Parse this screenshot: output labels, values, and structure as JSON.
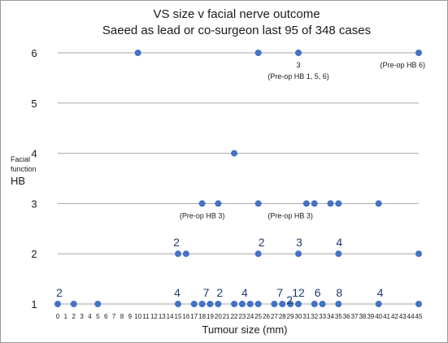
{
  "chart_data": {
    "type": "scatter",
    "title": "VS size v facial nerve outcome",
    "subtitle": "Saeed as lead or co-surgeon last 95 of 348 cases",
    "xlabel": "Tumour size (mm)",
    "ylabel_lines": [
      "Facial",
      "function",
      "HB"
    ],
    "xlim": [
      0,
      45
    ],
    "ylim": [
      1,
      6
    ],
    "xticks": [
      0,
      1,
      2,
      3,
      4,
      5,
      6,
      7,
      8,
      9,
      10,
      11,
      12,
      13,
      14,
      15,
      16,
      17,
      18,
      19,
      20,
      21,
      22,
      23,
      24,
      25,
      26,
      27,
      28,
      29,
      30,
      31,
      32,
      33,
      34,
      35,
      36,
      37,
      38,
      39,
      40,
      41,
      42,
      43,
      44,
      45
    ],
    "yticks": [
      1,
      2,
      3,
      4,
      5,
      6
    ],
    "grid": "horizontal",
    "marker_color": "#4472C4",
    "points": [
      {
        "x": 10,
        "y": 6
      },
      {
        "x": 25,
        "y": 6
      },
      {
        "x": 30,
        "y": 6
      },
      {
        "x": 45,
        "y": 6
      },
      {
        "x": 22,
        "y": 4
      },
      {
        "x": 18,
        "y": 3
      },
      {
        "x": 20,
        "y": 3
      },
      {
        "x": 25,
        "y": 3
      },
      {
        "x": 31,
        "y": 3
      },
      {
        "x": 32,
        "y": 3
      },
      {
        "x": 34,
        "y": 3
      },
      {
        "x": 35,
        "y": 3
      },
      {
        "x": 40,
        "y": 3
      },
      {
        "x": 15,
        "y": 2
      },
      {
        "x": 16,
        "y": 2
      },
      {
        "x": 25,
        "y": 2
      },
      {
        "x": 30,
        "y": 2
      },
      {
        "x": 35,
        "y": 2
      },
      {
        "x": 45,
        "y": 2
      },
      {
        "x": 0,
        "y": 1
      },
      {
        "x": 2,
        "y": 1
      },
      {
        "x": 5,
        "y": 1
      },
      {
        "x": 15,
        "y": 1
      },
      {
        "x": 17,
        "y": 1
      },
      {
        "x": 18,
        "y": 1
      },
      {
        "x": 19,
        "y": 1
      },
      {
        "x": 20,
        "y": 1
      },
      {
        "x": 22,
        "y": 1
      },
      {
        "x": 23,
        "y": 1
      },
      {
        "x": 24,
        "y": 1
      },
      {
        "x": 25,
        "y": 1
      },
      {
        "x": 27,
        "y": 1
      },
      {
        "x": 28,
        "y": 1
      },
      {
        "x": 29,
        "y": 1
      },
      {
        "x": 30,
        "y": 1
      },
      {
        "x": 32,
        "y": 1
      },
      {
        "x": 33,
        "y": 1
      },
      {
        "x": 35,
        "y": 1
      },
      {
        "x": 40,
        "y": 1
      },
      {
        "x": 45,
        "y": 1
      }
    ],
    "annotations": [
      {
        "text": "3",
        "x": 30,
        "y": 6,
        "pos": "below",
        "size": "small"
      },
      {
        "text": "(Pre-op HB 1, 5, 6)",
        "x": 30,
        "y": 6,
        "pos": "below2",
        "size": "small"
      },
      {
        "text": "(Pre-op HB 6)",
        "x": 43,
        "y": 6,
        "pos": "below",
        "size": "small"
      },
      {
        "text": "(Pre-op HB 3)",
        "x": 18,
        "y": 3,
        "pos": "below",
        "size": "small"
      },
      {
        "text": "(Pre-op HB 3)",
        "x": 29,
        "y": 3,
        "pos": "below",
        "size": "small"
      },
      {
        "text": "2",
        "x": 14.8,
        "y": 2,
        "pos": "above",
        "size": "large"
      },
      {
        "text": "2",
        "x": 25.4,
        "y": 2,
        "pos": "above",
        "size": "large"
      },
      {
        "text": "3",
        "x": 30.1,
        "y": 2,
        "pos": "above",
        "size": "large"
      },
      {
        "text": "4",
        "x": 35.1,
        "y": 2,
        "pos": "above",
        "size": "large"
      },
      {
        "text": "2",
        "x": 0.2,
        "y": 1,
        "pos": "above",
        "size": "large"
      },
      {
        "text": "4",
        "x": 14.9,
        "y": 1,
        "pos": "above",
        "size": "large"
      },
      {
        "text": "7",
        "x": 18.5,
        "y": 1,
        "pos": "above",
        "size": "large"
      },
      {
        "text": "2",
        "x": 20.2,
        "y": 1,
        "pos": "above",
        "size": "large"
      },
      {
        "text": "4",
        "x": 23.3,
        "y": 1,
        "pos": "above",
        "size": "large"
      },
      {
        "text": "7",
        "x": 27.7,
        "y": 1,
        "pos": "above",
        "size": "large"
      },
      {
        "text": "2",
        "x": 28.9,
        "y": 1,
        "pos": "above_low",
        "size": "large"
      },
      {
        "text": "12",
        "x": 30,
        "y": 1,
        "pos": "above",
        "size": "large"
      },
      {
        "text": "6",
        "x": 32.4,
        "y": 1,
        "pos": "above",
        "size": "large"
      },
      {
        "text": "8",
        "x": 35.1,
        "y": 1,
        "pos": "above",
        "size": "large"
      },
      {
        "text": "4",
        "x": 40.2,
        "y": 1,
        "pos": "above",
        "size": "large"
      }
    ]
  }
}
